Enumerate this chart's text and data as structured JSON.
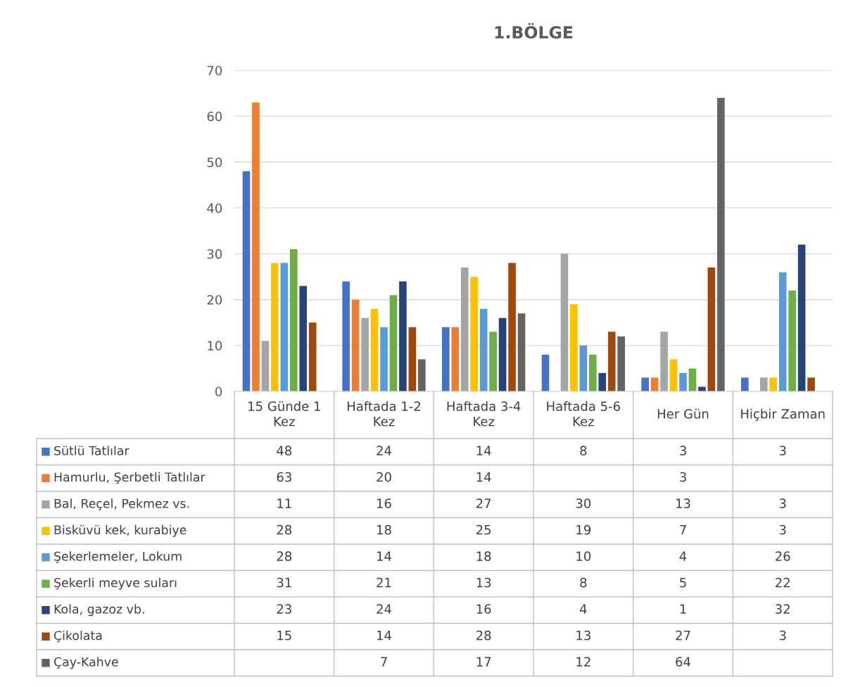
{
  "chart_data": {
    "type": "bar",
    "title": "1.BÖLGE",
    "categories": [
      "15 Günde 1 Kez",
      "Haftada 1-2 Kez",
      "Haftada 3-4 Kez",
      "Haftada 5-6 Kez",
      "Her Gün",
      "Hiçbir Zaman"
    ],
    "series": [
      {
        "name": "Sütlü Tatlılar",
        "color": "#4472c4",
        "values": [
          48,
          24,
          14,
          8,
          3,
          3
        ]
      },
      {
        "name": "Hamurlu, Şerbetli Tatlılar",
        "color": "#ed7d31",
        "values": [
          63,
          20,
          14,
          null,
          3,
          null
        ]
      },
      {
        "name": "Bal, Reçel, Pekmez vs.",
        "color": "#a5a5a5",
        "values": [
          11,
          16,
          27,
          30,
          13,
          3
        ]
      },
      {
        "name": "Bisküvü kek, kurabiye",
        "color": "#ffc000",
        "values": [
          28,
          18,
          25,
          19,
          7,
          3
        ]
      },
      {
        "name": "Şekerlemeler, Lokum",
        "color": "#5b9bd5",
        "values": [
          28,
          14,
          18,
          10,
          4,
          26
        ]
      },
      {
        "name": "Şekerli meyve suları",
        "color": "#70ad47",
        "values": [
          31,
          21,
          13,
          8,
          5,
          22
        ]
      },
      {
        "name": "Kola, gazoz vb.",
        "color": "#264478",
        "values": [
          23,
          24,
          16,
          4,
          1,
          32
        ]
      },
      {
        "name": "Çikolata",
        "color": "#9e480e",
        "values": [
          15,
          14,
          28,
          13,
          27,
          3
        ]
      },
      {
        "name": "Çay-Kahve",
        "color": "#636363",
        "values": [
          null,
          7,
          17,
          12,
          64,
          null
        ]
      }
    ],
    "ylim": [
      0,
      70
    ],
    "yticks": [
      0,
      10,
      20,
      30,
      40,
      50,
      60,
      70
    ],
    "grid": "y",
    "data_labels": true,
    "legend": "bottom"
  }
}
